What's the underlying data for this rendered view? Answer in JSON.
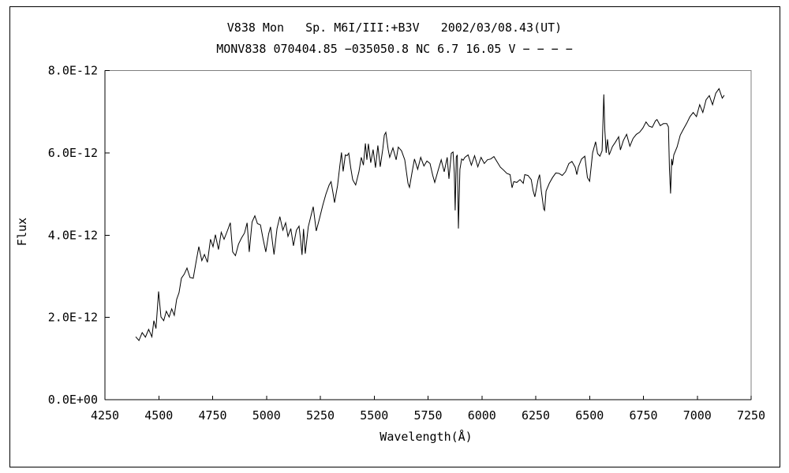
{
  "page": {
    "background_color": "#ffffff",
    "border_color": "#000000",
    "line_color": "#000000"
  },
  "chart_data": {
    "type": "line",
    "title": "V838 Mon   Sp. M6I/III:+B3V   2002/03/08.43(UT)",
    "subtitle": "MONV838 070404.85 −035050.8 NC 6.7 16.05 V − − − −",
    "xlabel": "Wavelength(Å)",
    "ylabel": "Flux",
    "xlim": [
      4250,
      7250
    ],
    "ylim": [
      0,
      8
    ],
    "flux_scale": "1E-12",
    "grid": false,
    "legend": "none",
    "line_color": "#000000",
    "x_ticks": [
      4250,
      4500,
      4750,
      5000,
      5250,
      5500,
      5750,
      6000,
      6250,
      6500,
      6750,
      7000,
      7250
    ],
    "y_ticks": [
      {
        "value": 0,
        "label": "0.0E+00"
      },
      {
        "value": 2,
        "label": "2.0E-12"
      },
      {
        "value": 4,
        "label": "4.0E-12"
      },
      {
        "value": 6,
        "label": "6.0E-12"
      },
      {
        "value": 8,
        "label": "8.0E-12"
      }
    ],
    "series": [
      {
        "name": "V838 Mon spectrum 2002/03/08.43",
        "points": [
          [
            4393,
            1.53
          ],
          [
            4408,
            1.44
          ],
          [
            4423,
            1.63
          ],
          [
            4438,
            1.52
          ],
          [
            4453,
            1.71
          ],
          [
            4468,
            1.53
          ],
          [
            4477,
            1.92
          ],
          [
            4487,
            1.73
          ],
          [
            4499,
            2.63
          ],
          [
            4510,
            2.01
          ],
          [
            4523,
            1.92
          ],
          [
            4535,
            2.15
          ],
          [
            4548,
            2.01
          ],
          [
            4560,
            2.21
          ],
          [
            4572,
            2.05
          ],
          [
            4583,
            2.44
          ],
          [
            4594,
            2.6
          ],
          [
            4605,
            2.95
          ],
          [
            4618,
            3.05
          ],
          [
            4631,
            3.2
          ],
          [
            4645,
            2.97
          ],
          [
            4660,
            2.95
          ],
          [
            4673,
            3.35
          ],
          [
            4686,
            3.72
          ],
          [
            4700,
            3.38
          ],
          [
            4712,
            3.53
          ],
          [
            4726,
            3.34
          ],
          [
            4740,
            3.9
          ],
          [
            4752,
            3.72
          ],
          [
            4763,
            4.01
          ],
          [
            4777,
            3.65
          ],
          [
            4790,
            4.07
          ],
          [
            4803,
            3.9
          ],
          [
            4818,
            4.1
          ],
          [
            4832,
            4.3
          ],
          [
            4843,
            3.59
          ],
          [
            4856,
            3.5
          ],
          [
            4870,
            3.78
          ],
          [
            4884,
            3.93
          ],
          [
            4898,
            4.05
          ],
          [
            4910,
            4.3
          ],
          [
            4920,
            3.59
          ],
          [
            4933,
            4.32
          ],
          [
            4946,
            4.47
          ],
          [
            4958,
            4.28
          ],
          [
            4972,
            4.25
          ],
          [
            4984,
            3.91
          ],
          [
            4997,
            3.59
          ],
          [
            5010,
            4.03
          ],
          [
            5019,
            4.2
          ],
          [
            5035,
            3.53
          ],
          [
            5049,
            4.16
          ],
          [
            5062,
            4.45
          ],
          [
            5076,
            4.12
          ],
          [
            5089,
            4.3
          ],
          [
            5100,
            3.97
          ],
          [
            5113,
            4.16
          ],
          [
            5125,
            3.74
          ],
          [
            5139,
            4.12
          ],
          [
            5151,
            4.22
          ],
          [
            5158,
            3.9
          ],
          [
            5165,
            3.52
          ],
          [
            5172,
            4.15
          ],
          [
            5180,
            3.55
          ],
          [
            5194,
            4.2
          ],
          [
            5208,
            4.5
          ],
          [
            5217,
            4.69
          ],
          [
            5231,
            4.1
          ],
          [
            5246,
            4.4
          ],
          [
            5261,
            4.72
          ],
          [
            5276,
            5.0
          ],
          [
            5291,
            5.22
          ],
          [
            5300,
            5.3
          ],
          [
            5309,
            5.02
          ],
          [
            5316,
            4.79
          ],
          [
            5330,
            5.2
          ],
          [
            5341,
            5.7
          ],
          [
            5348,
            6.01
          ],
          [
            5356,
            5.55
          ],
          [
            5366,
            5.95
          ],
          [
            5374,
            5.93
          ],
          [
            5382,
            5.99
          ],
          [
            5391,
            5.64
          ],
          [
            5400,
            5.35
          ],
          [
            5407,
            5.28
          ],
          [
            5414,
            5.22
          ],
          [
            5429,
            5.54
          ],
          [
            5440,
            5.89
          ],
          [
            5450,
            5.7
          ],
          [
            5459,
            6.23
          ],
          [
            5466,
            5.83
          ],
          [
            5473,
            6.22
          ],
          [
            5484,
            5.76
          ],
          [
            5495,
            6.08
          ],
          [
            5506,
            5.64
          ],
          [
            5517,
            6.18
          ],
          [
            5528,
            5.66
          ],
          [
            5540,
            6.1
          ],
          [
            5547,
            6.43
          ],
          [
            5554,
            6.5
          ],
          [
            5565,
            6.08
          ],
          [
            5572,
            5.89
          ],
          [
            5587,
            6.12
          ],
          [
            5602,
            5.83
          ],
          [
            5612,
            6.14
          ],
          [
            5627,
            6.05
          ],
          [
            5642,
            5.83
          ],
          [
            5657,
            5.26
          ],
          [
            5664,
            5.16
          ],
          [
            5675,
            5.5
          ],
          [
            5687,
            5.85
          ],
          [
            5702,
            5.6
          ],
          [
            5716,
            5.89
          ],
          [
            5731,
            5.68
          ],
          [
            5745,
            5.8
          ],
          [
            5759,
            5.74
          ],
          [
            5772,
            5.45
          ],
          [
            5781,
            5.28
          ],
          [
            5796,
            5.56
          ],
          [
            5811,
            5.83
          ],
          [
            5825,
            5.54
          ],
          [
            5839,
            5.89
          ],
          [
            5847,
            5.37
          ],
          [
            5858,
            5.99
          ],
          [
            5866,
            6.02
          ],
          [
            5872,
            5.51
          ],
          [
            5876,
            4.6
          ],
          [
            5881,
            5.9
          ],
          [
            5886,
            5.95
          ],
          [
            5891,
            4.16
          ],
          [
            5898,
            5.6
          ],
          [
            5906,
            5.85
          ],
          [
            5913,
            5.82
          ],
          [
            5921,
            5.89
          ],
          [
            5936,
            5.95
          ],
          [
            5951,
            5.7
          ],
          [
            5966,
            5.93
          ],
          [
            5981,
            5.66
          ],
          [
            5996,
            5.89
          ],
          [
            6011,
            5.74
          ],
          [
            6026,
            5.83
          ],
          [
            6041,
            5.85
          ],
          [
            6056,
            5.91
          ],
          [
            6071,
            5.78
          ],
          [
            6086,
            5.65
          ],
          [
            6101,
            5.58
          ],
          [
            6116,
            5.5
          ],
          [
            6131,
            5.47
          ],
          [
            6140,
            5.15
          ],
          [
            6148,
            5.3
          ],
          [
            6162,
            5.28
          ],
          [
            6177,
            5.35
          ],
          [
            6192,
            5.26
          ],
          [
            6199,
            5.47
          ],
          [
            6214,
            5.45
          ],
          [
            6229,
            5.35
          ],
          [
            6238,
            5.08
          ],
          [
            6246,
            4.93
          ],
          [
            6261,
            5.35
          ],
          [
            6268,
            5.47
          ],
          [
            6276,
            5.07
          ],
          [
            6287,
            4.64
          ],
          [
            6291,
            4.6
          ],
          [
            6298,
            5.07
          ],
          [
            6313,
            5.26
          ],
          [
            6328,
            5.4
          ],
          [
            6343,
            5.51
          ],
          [
            6358,
            5.5
          ],
          [
            6373,
            5.45
          ],
          [
            6388,
            5.54
          ],
          [
            6404,
            5.74
          ],
          [
            6418,
            5.79
          ],
          [
            6433,
            5.65
          ],
          [
            6441,
            5.47
          ],
          [
            6448,
            5.66
          ],
          [
            6463,
            5.85
          ],
          [
            6478,
            5.92
          ],
          [
            6490,
            5.4
          ],
          [
            6500,
            5.31
          ],
          [
            6514,
            6.0
          ],
          [
            6528,
            6.27
          ],
          [
            6537,
            5.98
          ],
          [
            6548,
            5.92
          ],
          [
            6558,
            6.05
          ],
          [
            6566,
            7.42
          ],
          [
            6571,
            6.55
          ],
          [
            6577,
            6.0
          ],
          [
            6583,
            6.33
          ],
          [
            6591,
            5.95
          ],
          [
            6606,
            6.15
          ],
          [
            6620,
            6.26
          ],
          [
            6635,
            6.39
          ],
          [
            6643,
            6.07
          ],
          [
            6657,
            6.3
          ],
          [
            6672,
            6.45
          ],
          [
            6687,
            6.16
          ],
          [
            6702,
            6.35
          ],
          [
            6717,
            6.45
          ],
          [
            6732,
            6.5
          ],
          [
            6747,
            6.6
          ],
          [
            6762,
            6.75
          ],
          [
            6776,
            6.65
          ],
          [
            6791,
            6.62
          ],
          [
            6806,
            6.78
          ],
          [
            6813,
            6.81
          ],
          [
            6828,
            6.66
          ],
          [
            6843,
            6.71
          ],
          [
            6858,
            6.71
          ],
          [
            6866,
            6.63
          ],
          [
            6871,
            5.6
          ],
          [
            6876,
            5.01
          ],
          [
            6881,
            5.85
          ],
          [
            6885,
            5.7
          ],
          [
            6891,
            5.95
          ],
          [
            6906,
            6.14
          ],
          [
            6921,
            6.43
          ],
          [
            6936,
            6.58
          ],
          [
            6951,
            6.72
          ],
          [
            6966,
            6.88
          ],
          [
            6981,
            6.98
          ],
          [
            6996,
            6.88
          ],
          [
            7011,
            7.17
          ],
          [
            7026,
            6.98
          ],
          [
            7041,
            7.29
          ],
          [
            7056,
            7.39
          ],
          [
            7071,
            7.17
          ],
          [
            7086,
            7.45
          ],
          [
            7101,
            7.56
          ],
          [
            7116,
            7.33
          ],
          [
            7125,
            7.4
          ]
        ]
      }
    ]
  }
}
